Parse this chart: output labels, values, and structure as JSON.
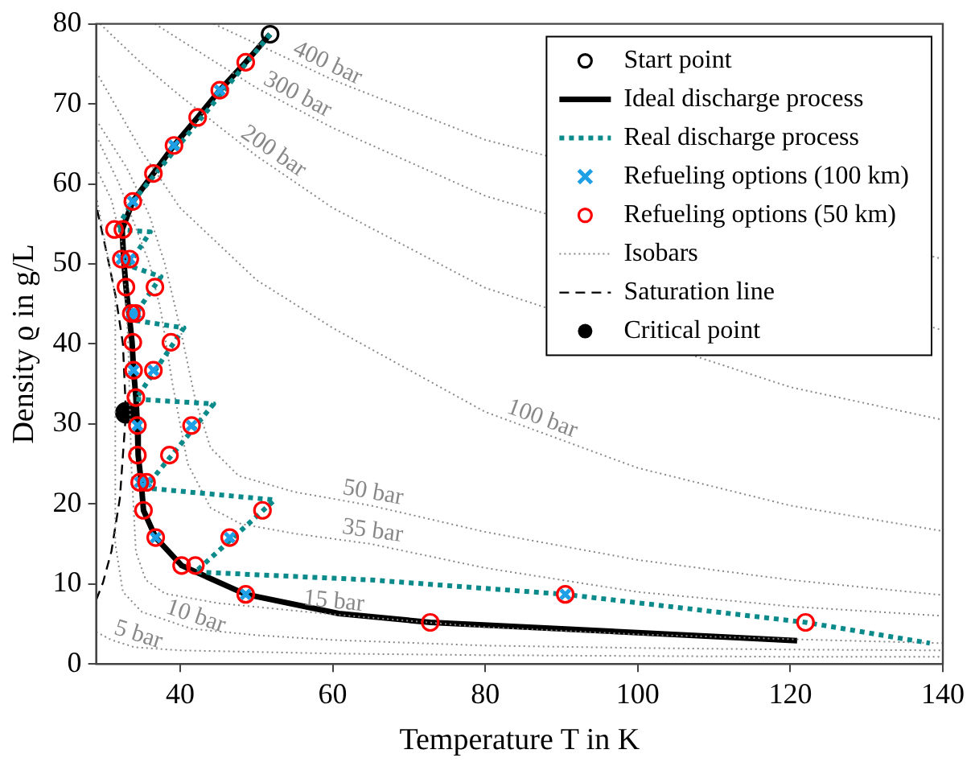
{
  "chart_data": {
    "type": "line",
    "xlabel": "Temperature T in K",
    "ylabel": "Density ϱ in g/L",
    "xlim": [
      29,
      140
    ],
    "ylim": [
      0,
      80
    ],
    "xticks": [
      40,
      60,
      80,
      100,
      120,
      140
    ],
    "yticks": [
      0,
      10,
      20,
      30,
      40,
      50,
      60,
      70,
      80
    ],
    "grid": false,
    "legend": "top right",
    "annotations": [
      {
        "text": "400 bar",
        "x": 58.6,
        "y": 73.6
      },
      {
        "text": "300 bar",
        "x": 54.6,
        "y": 69.7
      },
      {
        "text": "200 bar",
        "x": 51.3,
        "y": 62.7
      },
      {
        "text": "100 bar",
        "x": 86.9,
        "y": 29.1
      },
      {
        "text": "50 bar",
        "x": 65,
        "y": 19.8
      },
      {
        "text": "35 bar",
        "x": 65,
        "y": 15.0
      },
      {
        "text": "15 bar",
        "x": 60,
        "y": 6.2
      },
      {
        "text": "10 bar",
        "x": 41.5,
        "y": 4.4
      },
      {
        "text": "5 bar",
        "x": 34,
        "y": 2.1
      }
    ],
    "series": [
      {
        "type": "scatter",
        "name": "Start point",
        "color": "#000000",
        "marker": "circle",
        "x": [
          51.8
        ],
        "values": [
          78.7
        ]
      },
      {
        "name": "Ideal discharge process",
        "color": "#000000",
        "line_style": "solid",
        "x": [
          51.8,
          48.6,
          45.2,
          42.3,
          39.2,
          36.5,
          33.8,
          32.4,
          32.6,
          32.9,
          33.3,
          33.7,
          33.9,
          34.2,
          34.4,
          34.5,
          34.9,
          35.2,
          36.8,
          40.2,
          48.6,
          60.8,
          72.8,
          90,
          100.5,
          120.9
        ],
        "values": [
          78.7,
          75.2,
          71.7,
          68.3,
          64.8,
          61.3,
          57.8,
          54.3,
          50.6,
          47.1,
          43.8,
          40.2,
          36.7,
          33.3,
          29.8,
          26.1,
          22.7,
          19.2,
          15.8,
          12.3,
          8.7,
          6.3,
          5.2,
          4.4,
          3.9,
          2.9
        ]
      },
      {
        "name": "Real discharge process",
        "color": "#0a8a8a",
        "line_style": "dotted",
        "x": [
          51.8,
          33.8,
          31.6,
          36.1,
          33.2,
          37.5,
          33.6,
          40.5,
          34.2,
          44.4,
          35.4,
          52.4,
          42.0,
          65.1,
          90.5,
          122.0,
          138.3
        ],
        "values": [
          78.7,
          57.8,
          54.3,
          54.0,
          49.8,
          48.4,
          43.0,
          42.0,
          33.1,
          32.5,
          22.0,
          20.5,
          11.5,
          10.5,
          8.7,
          5.2,
          2.6
        ]
      },
      {
        "type": "scatter",
        "name": "Refueling options (100 km)",
        "color": "#1e9fe6",
        "marker": "cross",
        "x": [
          45.2,
          39.2,
          33.8,
          32.3,
          33.4,
          33.6,
          34.2,
          33.9,
          36.5,
          34.4,
          41.5,
          34.7,
          35.6,
          36.8,
          46.5,
          48.6,
          90.5
        ],
        "values": [
          71.7,
          64.8,
          57.8,
          50.6,
          50.6,
          43.8,
          43.8,
          36.7,
          36.7,
          29.8,
          29.8,
          22.7,
          22.7,
          15.8,
          15.8,
          8.7,
          8.7
        ]
      },
      {
        "type": "scatter",
        "name": "Refueling options (50 km)",
        "color": "#ff0000",
        "marker": "circle",
        "x": [
          48.6,
          45.2,
          42.3,
          39.2,
          36.5,
          33.8,
          31.4,
          32.5,
          32.3,
          33.4,
          32.9,
          36.7,
          33.6,
          34.2,
          33.8,
          38.8,
          33.9,
          36.5,
          34.2,
          34.4,
          41.5,
          34.4,
          38.6,
          34.7,
          35.6,
          35.2,
          50.8,
          36.8,
          46.5,
          40.2,
          42.0,
          48.6,
          90.5,
          72.8,
          122.0
        ],
        "values": [
          75.2,
          71.7,
          68.3,
          64.8,
          61.3,
          57.8,
          54.3,
          54.3,
          50.6,
          50.6,
          47.1,
          47.1,
          43.8,
          43.8,
          40.2,
          40.2,
          36.7,
          36.7,
          33.3,
          29.8,
          29.8,
          26.1,
          26.1,
          22.7,
          22.7,
          19.2,
          19.2,
          15.8,
          15.8,
          12.3,
          12.3,
          8.7,
          8.7,
          5.2,
          5.2
        ]
      },
      {
        "name": "Isobars",
        "color": "#888888",
        "line_style": "dotted",
        "x": [
          44.4,
          50,
          60,
          80,
          140
        ],
        "values": [
          80,
          77.5,
          73,
          65.5,
          50.6
        ]
      },
      {
        "color": "#888888",
        "line_style": "dotted",
        "x": [
          36.7,
          40,
          50,
          60,
          80,
          140
        ],
        "values": [
          80,
          78,
          72,
          67,
          58.5,
          41.7
        ]
      },
      {
        "color": "#888888",
        "line_style": "dotted",
        "x": [
          29.5,
          35,
          40,
          50,
          60,
          80,
          120,
          140
        ],
        "values": [
          80,
          75,
          71,
          63.5,
          57,
          47,
          34.6,
          30.5
        ]
      },
      {
        "color": "#888888",
        "line_style": "dotted",
        "x": [
          29,
          32,
          35,
          40,
          50,
          60,
          80,
          100,
          120,
          140
        ],
        "values": [
          74,
          69,
          64,
          57,
          48,
          42,
          31.5,
          24.5,
          19.8,
          16.6
        ]
      },
      {
        "color": "#888888",
        "line_style": "dotted",
        "x": [
          29,
          33,
          36,
          38,
          40,
          42,
          44,
          47.7,
          55,
          65,
          80,
          100,
          120,
          140
        ],
        "values": [
          68,
          62,
          56,
          50,
          42,
          33,
          27,
          23.5,
          21.5,
          19.8,
          16.5,
          13,
          10.5,
          8.6
        ]
      },
      {
        "color": "#888888",
        "line_style": "dotted",
        "x": [
          29,
          32,
          34,
          36,
          37.5,
          39,
          41,
          44,
          48,
          55,
          65,
          80,
          100,
          120,
          140
        ],
        "values": [
          66,
          60,
          55,
          50,
          44,
          35,
          25,
          19.5,
          17.5,
          16.3,
          15.0,
          12,
          9,
          7.2,
          6.0
        ]
      },
      {
        "color": "#888888",
        "line_style": "dotted",
        "x": [
          29,
          31,
          32.5,
          33.2,
          33.6,
          34.2,
          35.5,
          38,
          45,
          60,
          80,
          100,
          120,
          140
        ],
        "values": [
          62,
          58,
          52,
          40,
          25,
          14,
          10.5,
          8.8,
          7.6,
          6.2,
          4.6,
          3.7,
          3.1,
          2.6
        ]
      },
      {
        "color": "#888888",
        "line_style": "dotted",
        "x": [
          29,
          31.5,
          31.5,
          32.5,
          35,
          41.5,
          50,
          60,
          80,
          100,
          120,
          140
        ],
        "values": [
          58.5,
          46,
          15,
          9,
          6.5,
          4.4,
          3.6,
          3.0,
          2.3,
          2.0,
          1.8,
          1.7
        ]
      },
      {
        "color": "#888888",
        "line_style": "dotted",
        "x": [
          29,
          31,
          34,
          40,
          60,
          80,
          100,
          120,
          140
        ],
        "values": [
          4.0,
          3.0,
          2.1,
          1.7,
          1.3,
          1.1,
          1.0,
          0.9,
          0.9
        ]
      },
      {
        "name": "Saturation line",
        "color": "#000000",
        "line_style": "dashed",
        "x": [
          29,
          29.9,
          31,
          32.1,
          32.9,
          32.5,
          31.6,
          30.3,
          29
        ],
        "values": [
          8.0,
          10.2,
          14.1,
          20.7,
          31.4,
          40,
          45.7,
          51.7,
          57.3
        ]
      },
      {
        "name": "Critical point",
        "color": "#000000",
        "marker": "circle",
        "x": [
          32.9
        ],
        "values": [
          31.4
        ]
      }
    ]
  }
}
